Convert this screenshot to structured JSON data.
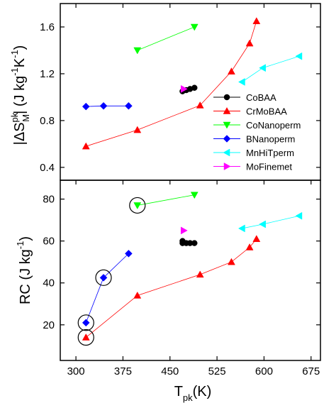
{
  "chart_data": [
    {
      "type": "line",
      "ylabel": "|ΔS",
      "ylabel_sup": "pk",
      "ylabel_sub": "M",
      "ylabel_unit": "| (J kg",
      "ylabel_unit_sup1": "-1",
      "ylabel_unit_mid": "K",
      "ylabel_unit_sup2": "-1",
      "ylabel_unit_end": ")",
      "ylim": [
        0.29,
        1.8
      ],
      "yticks": [
        "0.4",
        "0.8",
        "1.2",
        "1.6"
      ],
      "ytick_values": [
        0.4,
        0.8,
        1.2,
        1.6
      ],
      "xlim": [
        275,
        690
      ],
      "legend_position": "right",
      "series": [
        {
          "name": "CoBAA",
          "color": "#000000",
          "marker": "circle",
          "x": [
            470,
            476,
            482,
            489
          ],
          "y": [
            1.05,
            1.06,
            1.07,
            1.08
          ]
        },
        {
          "name": "CrMoBAA",
          "color": "#ff0000",
          "marker": "triangle-up",
          "x": [
            316,
            398,
            498,
            548,
            577,
            588
          ],
          "y": [
            0.58,
            0.72,
            0.93,
            1.22,
            1.46,
            1.65
          ]
        },
        {
          "name": "CoNanoperm",
          "color": "#00ff00",
          "marker": "triangle-down",
          "x": [
            398,
            489
          ],
          "y": [
            1.4,
            1.6
          ]
        },
        {
          "name": "BNanoperm",
          "color": "#0000ff",
          "marker": "diamond",
          "x": [
            316,
            344,
            384
          ],
          "y": [
            0.92,
            0.925,
            0.925
          ]
        },
        {
          "name": "MnHiTperm",
          "color": "#00ffff",
          "marker": "triangle-left",
          "x": [
            565,
            598,
            656
          ],
          "y": [
            1.13,
            1.25,
            1.35
          ]
        },
        {
          "name": "MoFinemet",
          "color": "#ff00ff",
          "marker": "triangle-right",
          "x": [
            472
          ],
          "y": [
            1.07
          ]
        }
      ]
    },
    {
      "type": "line",
      "ylabel": "RC (J kg",
      "ylabel_sup": "-1",
      "ylabel_end": ")",
      "xlabel": "T",
      "xlabel_sub": "pk",
      "xlabel_end": "(K)",
      "ylim": [
        3,
        89
      ],
      "yticks": [
        "20",
        "40",
        "60",
        "80"
      ],
      "ytick_values": [
        20,
        40,
        60,
        80
      ],
      "xlim": [
        275,
        690
      ],
      "xticks": [
        "300",
        "375",
        "450",
        "525",
        "600",
        "675"
      ],
      "xtick_values": [
        300,
        375,
        450,
        525,
        600,
        675
      ],
      "series": [
        {
          "name": "CoBAA",
          "color": "#000000",
          "marker": "circle",
          "x": [
            470,
            470,
            476,
            482,
            489
          ],
          "y": [
            60,
            59,
            59,
            59,
            59
          ]
        },
        {
          "name": "CrMoBAA",
          "color": "#ff0000",
          "marker": "triangle-up",
          "x": [
            316,
            398,
            498,
            548,
            577,
            588
          ],
          "y": [
            14,
            34,
            44,
            50,
            57,
            61
          ]
        },
        {
          "name": "CoNanoperm",
          "color": "#00ff00",
          "marker": "triangle-down",
          "x": [
            398,
            489
          ],
          "y": [
            77,
            82
          ]
        },
        {
          "name": "BNanoperm",
          "color": "#0000ff",
          "marker": "diamond",
          "x": [
            316,
            344,
            384
          ],
          "y": [
            21,
            42.5,
            54
          ]
        },
        {
          "name": "MnHiTperm",
          "color": "#00ffff",
          "marker": "triangle-left",
          "x": [
            565,
            598,
            656
          ],
          "y": [
            66,
            68,
            72
          ]
        },
        {
          "name": "MoFinemet",
          "color": "#ff00ff",
          "marker": "triangle-right",
          "x": [
            472
          ],
          "y": [
            65
          ]
        }
      ],
      "circled_points": [
        [
          316,
          14
        ],
        [
          316,
          21
        ],
        [
          344,
          42.5
        ],
        [
          398,
          77
        ]
      ]
    }
  ]
}
